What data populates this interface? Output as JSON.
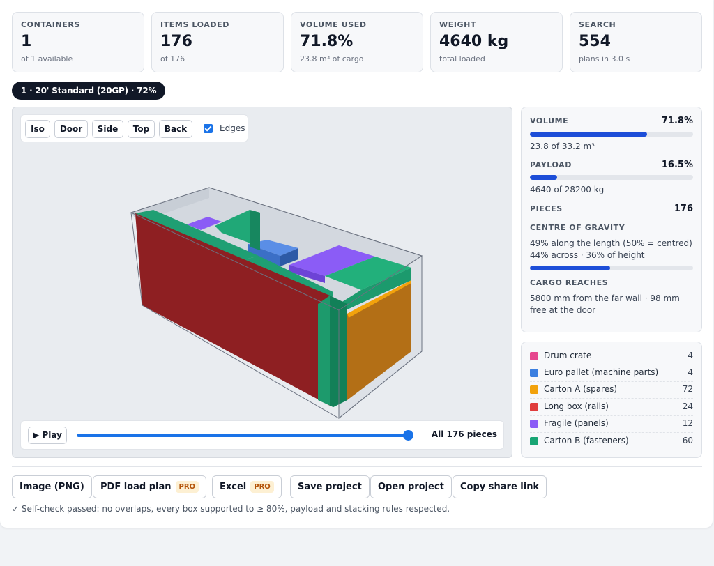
{
  "stats": [
    {
      "label": "CONTAINERS",
      "value": "1",
      "sub": "of 1 available"
    },
    {
      "label": "ITEMS LOADED",
      "value": "176",
      "sub": "of 176"
    },
    {
      "label": "VOLUME USED",
      "value": "71.8%",
      "sub": "23.8 m³ of cargo"
    },
    {
      "label": "WEIGHT",
      "value": "4640 kg",
      "sub": "total loaded"
    },
    {
      "label": "SEARCH",
      "value": "554",
      "sub": "plans in 3.0 s"
    }
  ],
  "container_chip": "1 · 20' Standard (20GP) · 72%",
  "viewer": {
    "views": [
      "Iso",
      "Door",
      "Side",
      "Top",
      "Back"
    ],
    "edges_label": "Edges",
    "edges_checked": true,
    "play_label": "▶ Play",
    "progress": 1.0,
    "pieces_label": "All 176 pieces"
  },
  "metrics": {
    "volume": {
      "label": "VOLUME",
      "value": "71.8%",
      "fraction": 0.718,
      "detail": "23.8 of 33.2 m³"
    },
    "payload": {
      "label": "PAYLOAD",
      "value": "16.5%",
      "fraction": 0.165,
      "detail": "4640 of 28200 kg"
    },
    "pieces": {
      "label": "PIECES",
      "value": "176"
    },
    "cog": {
      "label": "CENTRE OF GRAVITY",
      "line1": "49% along the length (50% = centred)",
      "line2": "44% across · 36% of height",
      "fraction": 0.49
    },
    "reach": {
      "label": "CARGO REACHES",
      "line1": "5800 mm from the far wall · 98 mm",
      "line2": "free at the door"
    }
  },
  "legend": [
    {
      "name": "Drum crate",
      "count": "4",
      "color": "#e6468e"
    },
    {
      "name": "Euro pallet (machine parts)",
      "count": "4",
      "color": "#3b7fe0"
    },
    {
      "name": "Carton A (spares)",
      "count": "72",
      "color": "#f2a20c"
    },
    {
      "name": "Long box (rails)",
      "count": "24",
      "color": "#e03c3c"
    },
    {
      "name": "Fragile (panels)",
      "count": "12",
      "color": "#8b5cf6"
    },
    {
      "name": "Carton B (fasteners)",
      "count": "60",
      "color": "#18a574"
    }
  ],
  "actions": [
    {
      "label": "Image (PNG)",
      "pro": ""
    },
    {
      "label": "PDF load plan",
      "pro": "PRO"
    },
    {
      "label": "Excel",
      "pro": "PRO"
    },
    {
      "label": "Save project",
      "pro": ""
    },
    {
      "label": "Open project",
      "pro": ""
    },
    {
      "label": "Copy share link",
      "pro": ""
    }
  ],
  "self_check": "✓ Self-check passed: no overlaps, every box supported to ≥ 80%, payload and stacking rules respected.",
  "colors": {
    "accent": "#1a73e8",
    "bar_fill": "#1d4ed8"
  }
}
